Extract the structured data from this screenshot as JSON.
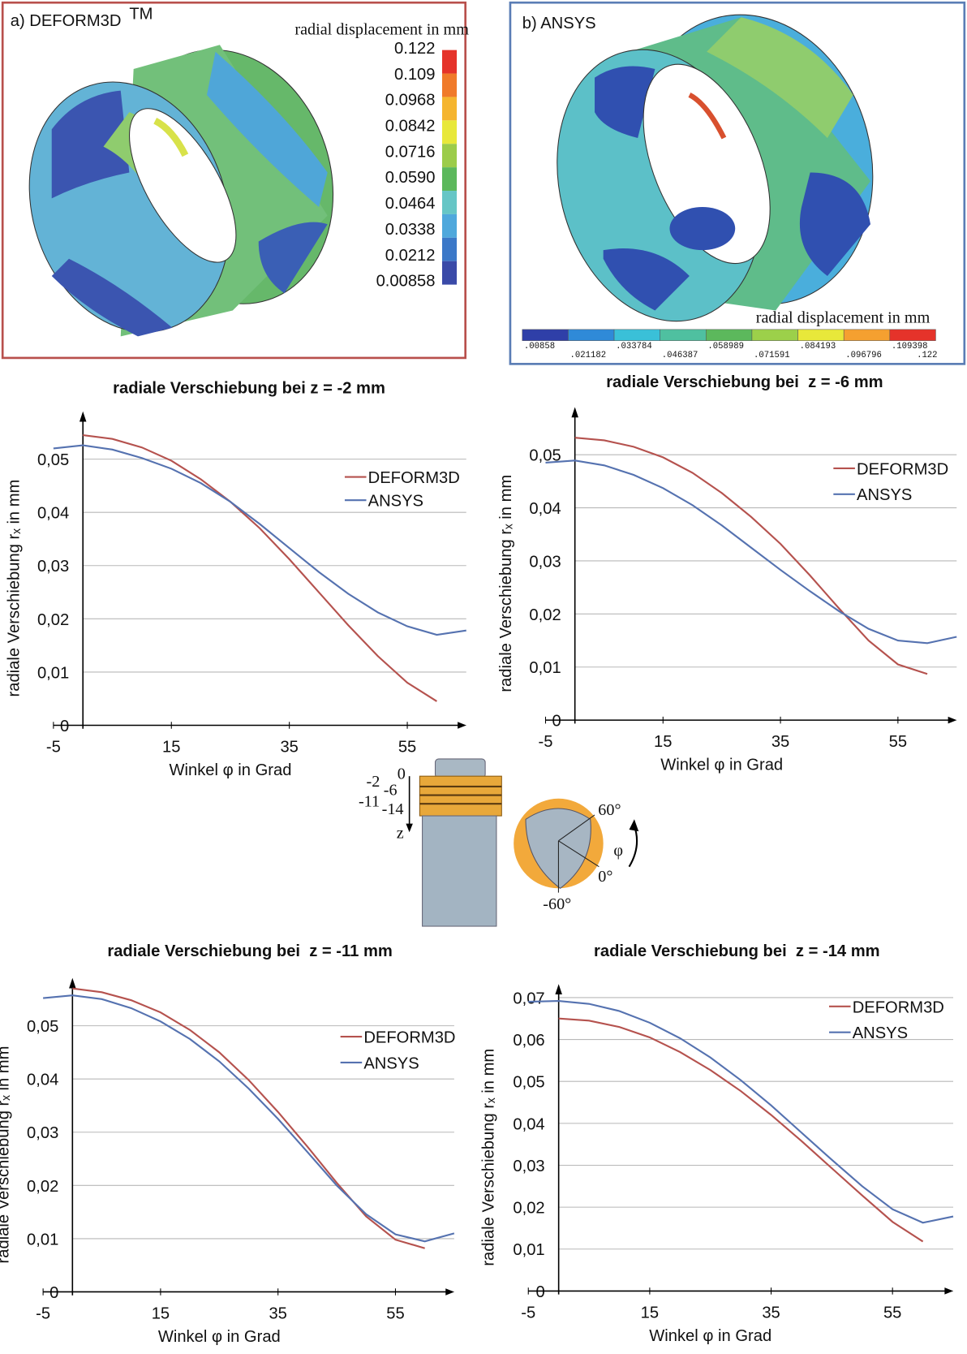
{
  "panels": [
    {
      "title": "a) DEFORM3D",
      "title_sup": "TM",
      "legend_title": "radial displacement in mm",
      "legend_labels": [
        "0.122",
        "0.109",
        "0.0968",
        "0.0842",
        "0.0716",
        "0.0590",
        "0.0464",
        "0.0338",
        "0.0212",
        "0.00858"
      ]
    },
    {
      "title": "b) ANSYS",
      "legend_title": "radial displacement in mm",
      "legend_labels": [
        ".00858",
        ".021182",
        ".033784",
        ".046387",
        ".058989",
        ".071591",
        ".084193",
        ".096796",
        ".109398",
        ".122"
      ]
    }
  ],
  "diagram": {
    "z_labels": [
      "0",
      "-2",
      "-6",
      "-11",
      "-14"
    ],
    "z_axis": "z",
    "angle_labels": [
      "60°",
      "φ",
      "0°",
      "-60°"
    ]
  },
  "chart_data": [
    {
      "type": "line",
      "title": "radiale Verschiebung bei z = -2 mm",
      "xlabel": "Winkel φ in Grad",
      "ylabel": "radiale Verschiebung rₓ in mm",
      "xlim": [
        -5,
        65
      ],
      "ylim": [
        0,
        0.058
      ],
      "xticks": [
        -5,
        15,
        35,
        55
      ],
      "yticks": [
        0,
        {
          "value": 0.01,
          "label": "0,01"
        },
        {
          "value": 0.02,
          "label": "0,02"
        },
        {
          "value": 0.03,
          "label": "0,03"
        },
        {
          "value": 0.04,
          "label": "0,04"
        },
        {
          "value": 0.05,
          "label": "0,05"
        }
      ],
      "grid": true,
      "series": [
        {
          "name": "DEFORM3D",
          "color": "#b5524e",
          "x": [
            0,
            5,
            10,
            15,
            20,
            25,
            30,
            35,
            40,
            45,
            50,
            55,
            60
          ],
          "values": [
            0.0545,
            0.0538,
            0.0522,
            0.0497,
            0.0462,
            0.042,
            0.037,
            0.0312,
            0.025,
            0.0188,
            0.013,
            0.008,
            0.0045
          ]
        },
        {
          "name": "ANSYS",
          "color": "#5572b0",
          "x": [
            -5,
            0,
            5,
            10,
            15,
            20,
            25,
            30,
            35,
            40,
            45,
            50,
            55,
            60,
            65
          ],
          "values": [
            0.052,
            0.0526,
            0.0518,
            0.0502,
            0.0482,
            0.0455,
            0.042,
            0.0378,
            0.0333,
            0.0288,
            0.0247,
            0.0212,
            0.0186,
            0.017,
            0.0178
          ]
        }
      ]
    },
    {
      "type": "line",
      "title": "radiale Verschiebung bei  z = -6 mm",
      "xlabel": "Winkel φ in Grad",
      "ylabel": "radiale Verschiebung rₓ in mm",
      "xlim": [
        -5,
        65
      ],
      "ylim": [
        0,
        0.058
      ],
      "xticks": [
        -5,
        15,
        35,
        55
      ],
      "yticks": [
        0,
        {
          "value": 0.01,
          "label": "0,01"
        },
        {
          "value": 0.02,
          "label": "0,02"
        },
        {
          "value": 0.03,
          "label": "0,03"
        },
        {
          "value": 0.04,
          "label": "0,04"
        },
        {
          "value": 0.05,
          "label": "0,05"
        }
      ],
      "grid": true,
      "series": [
        {
          "name": "DEFORM3D",
          "color": "#b5524e",
          "x": [
            0,
            5,
            10,
            15,
            20,
            25,
            30,
            35,
            40,
            45,
            50,
            55,
            60
          ],
          "values": [
            0.0532,
            0.0527,
            0.0515,
            0.0495,
            0.0466,
            0.0428,
            0.0383,
            0.0332,
            0.0273,
            0.021,
            0.015,
            0.0105,
            0.0087
          ]
        },
        {
          "name": "ANSYS",
          "color": "#5572b0",
          "x": [
            -5,
            0,
            5,
            10,
            15,
            20,
            25,
            30,
            35,
            40,
            45,
            50,
            55,
            60,
            65
          ],
          "values": [
            0.0485,
            0.0489,
            0.048,
            0.0462,
            0.0437,
            0.0405,
            0.0367,
            0.0325,
            0.0283,
            0.0243,
            0.0205,
            0.0172,
            0.015,
            0.0145,
            0.0157
          ]
        }
      ]
    },
    {
      "type": "line",
      "title": "radiale Verschiebung bei  z = -11 mm",
      "xlabel": "Winkel φ in Grad",
      "ylabel": "radiale Verschiebung rₓ in mm",
      "xlim": [
        -5,
        65
      ],
      "ylim": [
        0,
        0.058
      ],
      "xticks": [
        -5,
        15,
        35,
        55
      ],
      "yticks": [
        0,
        {
          "value": 0.01,
          "label": "0,01"
        },
        {
          "value": 0.02,
          "label": "0,02"
        },
        {
          "value": 0.03,
          "label": "0,03"
        },
        {
          "value": 0.04,
          "label": "0,04"
        },
        {
          "value": 0.05,
          "label": "0,05"
        }
      ],
      "grid": true,
      "series": [
        {
          "name": "DEFORM3D",
          "color": "#b5524e",
          "x": [
            0,
            5,
            10,
            15,
            20,
            25,
            30,
            35,
            40,
            45,
            50,
            55,
            60
          ],
          "values": [
            0.057,
            0.0563,
            0.0548,
            0.0525,
            0.0492,
            0.045,
            0.0398,
            0.0338,
            0.0273,
            0.0205,
            0.0142,
            0.0098,
            0.0082
          ]
        },
        {
          "name": "ANSYS",
          "color": "#5572b0",
          "x": [
            -5,
            0,
            5,
            10,
            15,
            20,
            25,
            30,
            35,
            40,
            45,
            50,
            55,
            60,
            65
          ],
          "values": [
            0.0552,
            0.0557,
            0.055,
            0.0533,
            0.0508,
            0.0475,
            0.0433,
            0.0382,
            0.0325,
            0.0263,
            0.02,
            0.0146,
            0.0108,
            0.0095,
            0.011
          ]
        }
      ]
    },
    {
      "type": "line",
      "title": "radiale Verschiebung bei  z = -14 mm",
      "xlabel": "Winkel φ in Grad",
      "ylabel": "radiale Verschiebung rₓ in mm",
      "xlim": [
        -5,
        65
      ],
      "ylim": [
        0,
        0.072
      ],
      "xticks": [
        -5,
        15,
        35,
        55
      ],
      "yticks": [
        0,
        {
          "value": 0.01,
          "label": "0,01"
        },
        {
          "value": 0.02,
          "label": "0,02"
        },
        {
          "value": 0.03,
          "label": "0,03"
        },
        {
          "value": 0.04,
          "label": "0,04"
        },
        {
          "value": 0.05,
          "label": "0,05"
        },
        {
          "value": 0.06,
          "label": "0,06"
        },
        {
          "value": 0.07,
          "label": "0,07"
        }
      ],
      "grid": true,
      "series": [
        {
          "name": "DEFORM3D",
          "color": "#b5524e",
          "x": [
            0,
            5,
            10,
            15,
            20,
            25,
            30,
            35,
            40,
            45,
            50,
            55,
            60
          ],
          "values": [
            0.065,
            0.0645,
            0.063,
            0.0605,
            0.057,
            0.0527,
            0.0477,
            0.042,
            0.0358,
            0.0293,
            0.0228,
            0.0165,
            0.0118
          ]
        },
        {
          "name": "ANSYS",
          "color": "#5572b0",
          "x": [
            -5,
            0,
            5,
            10,
            15,
            20,
            25,
            30,
            35,
            40,
            45,
            50,
            55,
            60,
            65
          ],
          "values": [
            0.069,
            0.0692,
            0.0685,
            0.0668,
            0.064,
            0.0603,
            0.0557,
            0.0503,
            0.0443,
            0.0378,
            0.0313,
            0.025,
            0.0195,
            0.0163,
            0.0178
          ]
        }
      ]
    }
  ]
}
